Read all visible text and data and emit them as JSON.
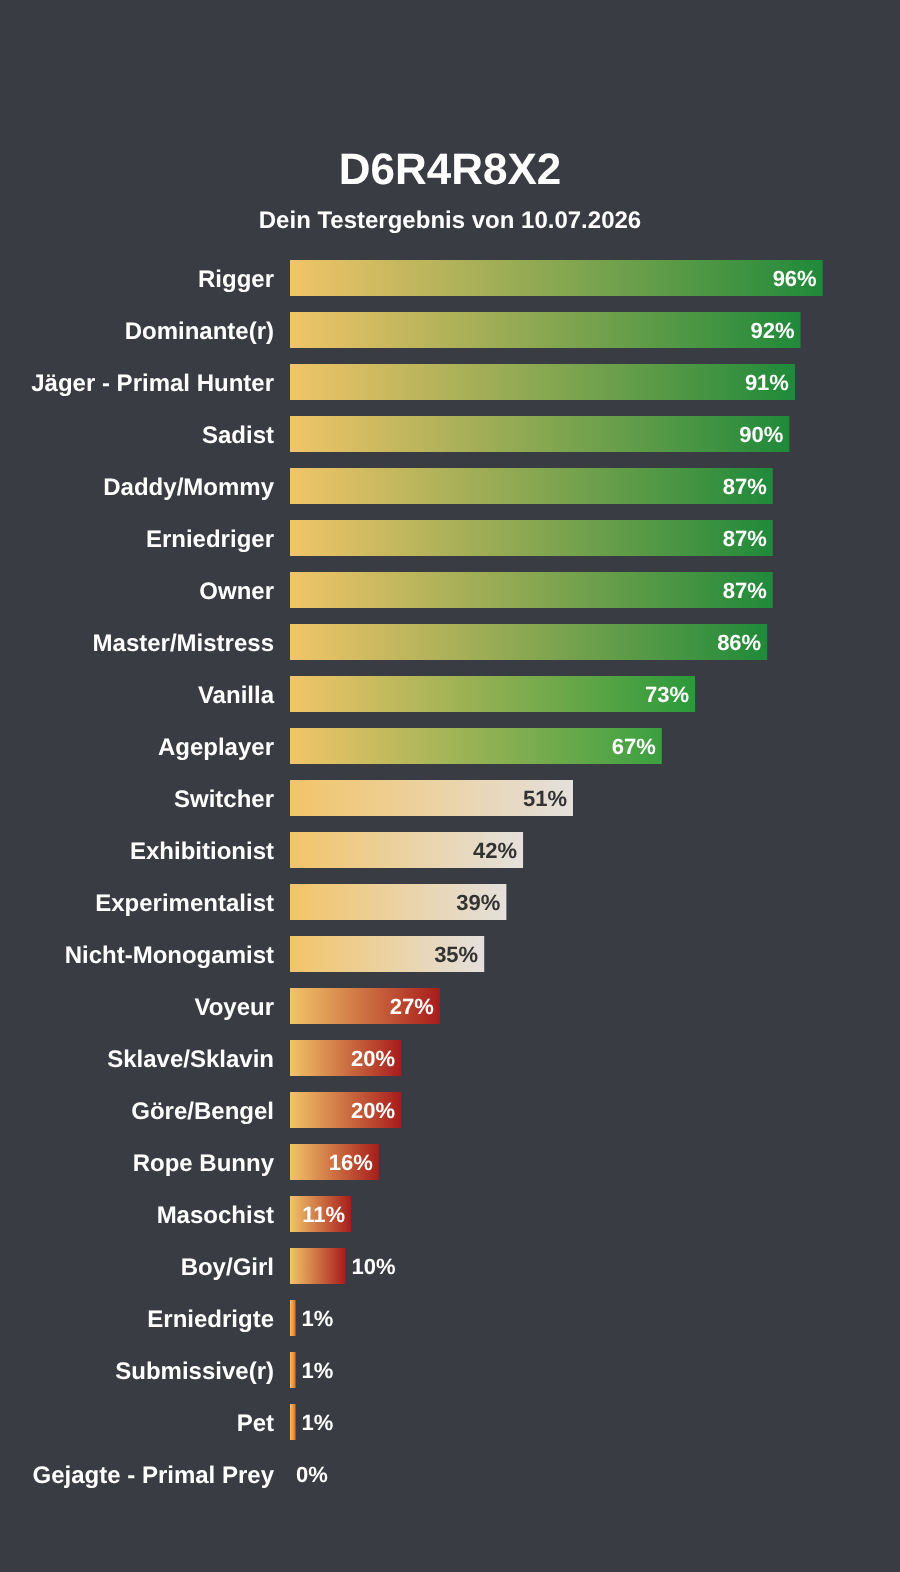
{
  "chart_data": {
    "type": "bar",
    "orientation": "horizontal",
    "title": "D6R4R8X2",
    "subtitle": "Dein Testergebnis von 10.07.2026",
    "categories": [
      "Rigger",
      "Dominante(r)",
      "Jäger - Primal Hunter",
      "Sadist",
      "Daddy/Mommy",
      "Erniedriger",
      "Owner",
      "Master/Mistress",
      "Vanilla",
      "Ageplayer",
      "Switcher",
      "Exhibitionist",
      "Experimentalist",
      "Nicht-Monogamist",
      "Voyeur",
      "Sklave/Sklavin",
      "Göre/Bengel",
      "Rope Bunny",
      "Masochist",
      "Boy/Girl",
      "Erniedrigte",
      "Submissive(r)",
      "Pet",
      "Gejagte - Primal Prey"
    ],
    "values": [
      96,
      92,
      91,
      90,
      87,
      87,
      87,
      86,
      73,
      67,
      51,
      42,
      39,
      35,
      27,
      20,
      20,
      16,
      11,
      10,
      1,
      1,
      1,
      0
    ],
    "colors": [
      "#1f8a3a",
      "#1f8a3a",
      "#1f8a3a",
      "#1f8a3a",
      "#1f8a3a",
      "#1f8a3a",
      "#1f8a3a",
      "#1f8a3a",
      "#2a9a3a",
      "#3aa040",
      "#e4e0dc",
      "#e4e0dc",
      "#e4e0dc",
      "#e4e0dc",
      "#a81c1c",
      "#a81c1c",
      "#a81c1c",
      "#a81c1c",
      "#a81c1c",
      "#a81c1c",
      "#e07020",
      "#e07020",
      "#e07020",
      "#e07020"
    ],
    "value_labels": [
      "96%",
      "92%",
      "91%",
      "90%",
      "87%",
      "87%",
      "87%",
      "86%",
      "73%",
      "67%",
      "51%",
      "42%",
      "39%",
      "35%",
      "27%",
      "20%",
      "20%",
      "16%",
      "11%",
      "10%",
      "1%",
      "1%",
      "1%",
      "0%"
    ]
  }
}
